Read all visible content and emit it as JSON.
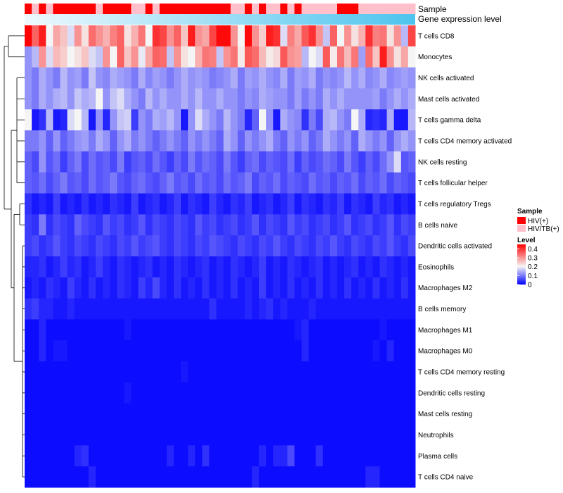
{
  "chart_data": {
    "type": "heatmap",
    "title": "",
    "annotations": {
      "sample_label": "Sample",
      "gene_label": "Gene expression level"
    },
    "rows": [
      "T cells CD8",
      "Monocytes",
      "NK cells activated",
      "Mast cells activated",
      "T cells gamma delta",
      "T cells CD4 memory activated",
      "NK cells resting",
      "T cells follicular helper",
      "T cells regulatory  Tregs",
      "B cells naive",
      "Dendritic cells activated",
      "Eosinophils",
      "Macrophages M2",
      "B cells memory",
      "Macrophages M1",
      "Macrophages M0",
      "T cells CD4 memory resting",
      "Dendritic cells resting",
      "Mast cells resting",
      "Neutrophils",
      "Plasma cells",
      "T cells CD4 naive"
    ],
    "sample_groups": [
      1,
      0,
      1,
      0,
      1,
      1,
      1,
      1,
      1,
      1,
      0,
      1,
      1,
      1,
      1,
      0,
      0,
      1,
      0,
      1,
      1,
      1,
      1,
      1,
      1,
      1,
      1,
      1,
      1,
      0,
      0,
      1,
      0,
      1,
      0,
      0,
      1,
      0,
      1,
      0,
      0,
      0,
      0,
      0,
      1,
      1,
      1,
      0,
      0,
      0,
      0,
      0,
      0,
      0,
      0
    ],
    "values": [
      [
        0.45,
        0.35,
        0.42,
        0.2,
        0.28,
        0.25,
        0.18,
        0.3,
        0.22,
        0.34,
        0.3,
        0.27,
        0.32,
        0.35,
        0.22,
        0.27,
        0.33,
        0.2,
        0.4,
        0.38,
        0.3,
        0.35,
        0.25,
        0.42,
        0.3,
        0.28,
        0.38,
        0.44,
        0.44,
        0.3,
        0.2,
        0.44,
        0.3,
        0.24,
        0.42,
        0.4,
        0.18,
        0.32,
        0.28,
        0.36,
        0.4,
        0.3,
        0.16,
        0.35,
        0.2,
        0.3,
        0.22,
        0.27,
        0.4,
        0.32,
        0.33,
        0.22,
        0.3,
        0.15,
        0.38
      ],
      [
        0.12,
        0.15,
        0.3,
        0.18,
        0.26,
        0.24,
        0.2,
        0.22,
        0.25,
        0.18,
        0.16,
        0.3,
        0.2,
        0.35,
        0.25,
        0.3,
        0.19,
        0.28,
        0.35,
        0.34,
        0.16,
        0.3,
        0.22,
        0.2,
        0.27,
        0.33,
        0.32,
        0.16,
        0.3,
        0.33,
        0.21,
        0.36,
        0.34,
        0.26,
        0.21,
        0.23,
        0.36,
        0.3,
        0.29,
        0.15,
        0.2,
        0.18,
        0.36,
        0.21,
        0.33,
        0.26,
        0.33,
        0.13,
        0.34,
        0.25,
        0.42,
        0.3,
        0.22,
        0.28,
        0.2
      ],
      [
        0.12,
        0.1,
        0.14,
        0.12,
        0.1,
        0.15,
        0.12,
        0.13,
        0.1,
        0.16,
        0.12,
        0.11,
        0.14,
        0.13,
        0.12,
        0.1,
        0.14,
        0.11,
        0.13,
        0.12,
        0.1,
        0.12,
        0.14,
        0.12,
        0.13,
        0.12,
        0.1,
        0.11,
        0.12,
        0.14,
        0.1,
        0.13,
        0.12,
        0.14,
        0.12,
        0.11,
        0.14,
        0.1,
        0.13,
        0.12,
        0.14,
        0.1,
        0.12,
        0.11,
        0.12,
        0.15,
        0.12,
        0.14,
        0.11,
        0.12,
        0.14,
        0.11,
        0.12,
        0.13,
        0.12
      ],
      [
        0.12,
        0.1,
        0.14,
        0.12,
        0.14,
        0.15,
        0.12,
        0.16,
        0.14,
        0.15,
        0.2,
        0.12,
        0.16,
        0.18,
        0.14,
        0.12,
        0.1,
        0.15,
        0.12,
        0.14,
        0.12,
        0.12,
        0.14,
        0.12,
        0.15,
        0.12,
        0.12,
        0.14,
        0.12,
        0.12,
        0.1,
        0.12,
        0.11,
        0.14,
        0.13,
        0.12,
        0.12,
        0.1,
        0.13,
        0.1,
        0.12,
        0.1,
        0.14,
        0.12,
        0.14,
        0.12,
        0.12,
        0.12,
        0.12,
        0.13,
        0.1,
        0.12,
        0.14,
        0.12,
        0.14
      ],
      [
        0.2,
        0.02,
        0.04,
        0.15,
        0.02,
        0.03,
        0.18,
        0.2,
        0.15,
        0.02,
        0.12,
        0.03,
        0.12,
        0.16,
        0.17,
        0.05,
        0.12,
        0.1,
        0.14,
        0.13,
        0.15,
        0.12,
        0.02,
        0.12,
        0.18,
        0.14,
        0.12,
        0.1,
        0.15,
        0.12,
        0.1,
        0.03,
        0.08,
        0.2,
        0.12,
        0.02,
        0.14,
        0.12,
        0.11,
        0.04,
        0.1,
        0.06,
        0.14,
        0.15,
        0.12,
        0.1,
        0.2,
        0.14,
        0.03,
        0.04,
        0.03,
        0.14,
        0.02,
        0.02,
        0.15
      ],
      [
        0.1,
        0.1,
        0.12,
        0.08,
        0.12,
        0.08,
        0.1,
        0.12,
        0.13,
        0.1,
        0.14,
        0.12,
        0.08,
        0.12,
        0.14,
        0.1,
        0.12,
        0.1,
        0.08,
        0.1,
        0.12,
        0.1,
        0.08,
        0.12,
        0.1,
        0.12,
        0.1,
        0.08,
        0.14,
        0.12,
        0.08,
        0.12,
        0.1,
        0.12,
        0.14,
        0.1,
        0.08,
        0.12,
        0.1,
        0.12,
        0.08,
        0.1,
        0.14,
        0.12,
        0.1,
        0.12,
        0.08,
        0.14,
        0.12,
        0.1,
        0.12,
        0.08,
        0.12,
        0.14,
        0.12
      ],
      [
        0.08,
        0.06,
        0.12,
        0.07,
        0.09,
        0.05,
        0.08,
        0.1,
        0.06,
        0.09,
        0.07,
        0.08,
        0.06,
        0.1,
        0.05,
        0.07,
        0.08,
        0.06,
        0.09,
        0.07,
        0.05,
        0.08,
        0.06,
        0.1,
        0.07,
        0.09,
        0.08,
        0.06,
        0.1,
        0.07,
        0.05,
        0.08,
        0.09,
        0.06,
        0.08,
        0.07,
        0.06,
        0.09,
        0.05,
        0.08,
        0.06,
        0.07,
        0.09,
        0.08,
        0.06,
        0.1,
        0.07,
        0.05,
        0.08,
        0.06,
        0.09,
        0.12,
        0.18,
        0.07,
        0.08
      ],
      [
        0.08,
        0.07,
        0.09,
        0.06,
        0.08,
        0.1,
        0.07,
        0.08,
        0.06,
        0.09,
        0.07,
        0.08,
        0.1,
        0.07,
        0.06,
        0.08,
        0.09,
        0.07,
        0.06,
        0.08,
        0.1,
        0.07,
        0.08,
        0.06,
        0.09,
        0.07,
        0.08,
        0.06,
        0.09,
        0.07,
        0.08,
        0.1,
        0.06,
        0.08,
        0.07,
        0.09,
        0.06,
        0.08,
        0.07,
        0.06,
        0.09,
        0.07,
        0.08,
        0.06,
        0.08,
        0.07,
        0.09,
        0.06,
        0.08,
        0.07,
        0.09,
        0.06,
        0.08,
        0.07,
        0.06
      ],
      [
        0.04,
        0.02,
        0.03,
        0.02,
        0.05,
        0.02,
        0.03,
        0.02,
        0.04,
        0.02,
        0.03,
        0.02,
        0.04,
        0.03,
        0.02,
        0.05,
        0.02,
        0.03,
        0.04,
        0.02,
        0.03,
        0.05,
        0.02,
        0.04,
        0.03,
        0.02,
        0.05,
        0.03,
        0.02,
        0.04,
        0.03,
        0.05,
        0.02,
        0.03,
        0.04,
        0.02,
        0.03,
        0.05,
        0.02,
        0.04,
        0.03,
        0.02,
        0.04,
        0.03,
        0.05,
        0.02,
        0.04,
        0.03,
        0.02,
        0.05,
        0.03,
        0.04,
        0.02,
        0.03,
        0.02
      ],
      [
        0.05,
        0.04,
        0.1,
        0.04,
        0.06,
        0.05,
        0.04,
        0.08,
        0.06,
        0.05,
        0.04,
        0.07,
        0.05,
        0.06,
        0.04,
        0.05,
        0.07,
        0.04,
        0.06,
        0.05,
        0.04,
        0.06,
        0.05,
        0.04,
        0.07,
        0.05,
        0.06,
        0.04,
        0.05,
        0.06,
        0.04,
        0.05,
        0.07,
        0.04,
        0.06,
        0.05,
        0.04,
        0.07,
        0.05,
        0.06,
        0.04,
        0.05,
        0.06,
        0.04,
        0.05,
        0.07,
        0.04,
        0.05,
        0.06,
        0.04,
        0.05,
        0.07,
        0.04,
        0.06,
        0.05
      ],
      [
        0.05,
        0.06,
        0.04,
        0.05,
        0.07,
        0.05,
        0.04,
        0.06,
        0.05,
        0.04,
        0.06,
        0.05,
        0.04,
        0.06,
        0.05,
        0.07,
        0.05,
        0.06,
        0.07,
        0.05,
        0.04,
        0.06,
        0.05,
        0.04,
        0.06,
        0.05,
        0.07,
        0.06,
        0.05,
        0.04,
        0.06,
        0.05,
        0.04,
        0.06,
        0.05,
        0.07,
        0.05,
        0.04,
        0.06,
        0.05,
        0.04,
        0.06,
        0.05,
        0.07,
        0.05,
        0.04,
        0.06,
        0.05,
        0.04,
        0.06,
        0.05,
        0.07,
        0.05,
        0.04,
        0.06
      ],
      [
        0.03,
        0.03,
        0.04,
        0.02,
        0.03,
        0.05,
        0.03,
        0.04,
        0.02,
        0.03,
        0.05,
        0.03,
        0.02,
        0.04,
        0.03,
        0.02,
        0.03,
        0.04,
        0.02,
        0.03,
        0.02,
        0.04,
        0.03,
        0.02,
        0.03,
        0.04,
        0.02,
        0.03,
        0.02,
        0.04,
        0.03,
        0.02,
        0.03,
        0.05,
        0.02,
        0.03,
        0.02,
        0.04,
        0.03,
        0.02,
        0.03,
        0.04,
        0.02,
        0.03,
        0.02,
        0.03,
        0.04,
        0.02,
        0.03,
        0.02,
        0.04,
        0.03,
        0.02,
        0.03,
        0.02
      ],
      [
        0.02,
        0.03,
        0.02,
        0.04,
        0.03,
        0.02,
        0.05,
        0.03,
        0.02,
        0.04,
        0.02,
        0.03,
        0.02,
        0.04,
        0.03,
        0.02,
        0.05,
        0.03,
        0.06,
        0.03,
        0.02,
        0.04,
        0.02,
        0.03,
        0.02,
        0.04,
        0.02,
        0.03,
        0.02,
        0.04,
        0.02,
        0.03,
        0.02,
        0.05,
        0.02,
        0.03,
        0.02,
        0.04,
        0.02,
        0.03,
        0.02,
        0.04,
        0.02,
        0.03,
        0.02,
        0.04,
        0.02,
        0.03,
        0.02,
        0.04,
        0.02,
        0.03,
        0.02,
        0.04,
        0.02
      ],
      [
        0.04,
        0.05,
        0.03,
        0.03,
        0.02,
        0.02,
        0.03,
        0.02,
        0.02,
        0.02,
        0.02,
        0.02,
        0.02,
        0.02,
        0.02,
        0.02,
        0.02,
        0.02,
        0.02,
        0.02,
        0.02,
        0.02,
        0.02,
        0.02,
        0.02,
        0.02,
        0.04,
        0.02,
        0.02,
        0.02,
        0.02,
        0.03,
        0.02,
        0.03,
        0.04,
        0.02,
        0.03,
        0.02,
        0.02,
        0.02,
        0.03,
        0.02,
        0.02,
        0.02,
        0.02,
        0.02,
        0.02,
        0.02,
        0.02,
        0.02,
        0.02,
        0.02,
        0.02,
        0.02,
        0.02
      ],
      [
        0.01,
        0.01,
        0.03,
        0.01,
        0.01,
        0.01,
        0.01,
        0.01,
        0.01,
        0.01,
        0.01,
        0.01,
        0.01,
        0.01,
        0.02,
        0.01,
        0.01,
        0.01,
        0.01,
        0.01,
        0.01,
        0.01,
        0.01,
        0.01,
        0.01,
        0.01,
        0.01,
        0.01,
        0.01,
        0.01,
        0.01,
        0.01,
        0.01,
        0.01,
        0.01,
        0.01,
        0.01,
        0.01,
        0.02,
        0.03,
        0.01,
        0.01,
        0.01,
        0.01,
        0.01,
        0.01,
        0.01,
        0.01,
        0.01,
        0.01,
        0.02,
        0.01,
        0.01,
        0.01,
        0.01
      ],
      [
        0.01,
        0.01,
        0.03,
        0.01,
        0.02,
        0.02,
        0.01,
        0.01,
        0.01,
        0.01,
        0.01,
        0.01,
        0.01,
        0.01,
        0.01,
        0.01,
        0.01,
        0.01,
        0.01,
        0.01,
        0.01,
        0.01,
        0.01,
        0.01,
        0.01,
        0.01,
        0.01,
        0.01,
        0.01,
        0.01,
        0.01,
        0.01,
        0.01,
        0.01,
        0.01,
        0.01,
        0.01,
        0.01,
        0.01,
        0.03,
        0.01,
        0.01,
        0.01,
        0.01,
        0.01,
        0.01,
        0.01,
        0.01,
        0.01,
        0.02,
        0.01,
        0.03,
        0.01,
        0.01,
        0.01
      ],
      [
        0.01,
        0.01,
        0.01,
        0.01,
        0.01,
        0.01,
        0.01,
        0.01,
        0.01,
        0.01,
        0.01,
        0.01,
        0.01,
        0.01,
        0.01,
        0.01,
        0.01,
        0.01,
        0.01,
        0.01,
        0.01,
        0.01,
        0.02,
        0.01,
        0.01,
        0.01,
        0.01,
        0.01,
        0.01,
        0.01,
        0.01,
        0.01,
        0.01,
        0.01,
        0.01,
        0.01,
        0.01,
        0.01,
        0.01,
        0.01,
        0.01,
        0.01,
        0.01,
        0.01,
        0.01,
        0.01,
        0.01,
        0.01,
        0.01,
        0.01,
        0.01,
        0.01,
        0.01,
        0.01,
        0.01
      ],
      [
        0.01,
        0.01,
        0.01,
        0.01,
        0.01,
        0.01,
        0.01,
        0.01,
        0.01,
        0.01,
        0.01,
        0.01,
        0.01,
        0.01,
        0.02,
        0.01,
        0.01,
        0.01,
        0.01,
        0.01,
        0.01,
        0.01,
        0.01,
        0.01,
        0.01,
        0.01,
        0.01,
        0.01,
        0.01,
        0.01,
        0.01,
        0.01,
        0.01,
        0.01,
        0.01,
        0.01,
        0.01,
        0.01,
        0.01,
        0.01,
        0.01,
        0.01,
        0.01,
        0.01,
        0.01,
        0.01,
        0.01,
        0.01,
        0.01,
        0.01,
        0.01,
        0.01,
        0.01,
        0.01,
        0.01
      ],
      [
        0.01,
        0.01,
        0.01,
        0.01,
        0.01,
        0.01,
        0.01,
        0.01,
        0.01,
        0.01,
        0.01,
        0.01,
        0.01,
        0.01,
        0.01,
        0.01,
        0.01,
        0.01,
        0.01,
        0.01,
        0.01,
        0.01,
        0.01,
        0.01,
        0.01,
        0.01,
        0.01,
        0.01,
        0.01,
        0.01,
        0.01,
        0.01,
        0.01,
        0.01,
        0.01,
        0.01,
        0.01,
        0.01,
        0.01,
        0.01,
        0.01,
        0.01,
        0.01,
        0.01,
        0.01,
        0.01,
        0.01,
        0.01,
        0.01,
        0.01,
        0.01,
        0.01,
        0.01,
        0.01,
        0.01
      ],
      [
        0.01,
        0.01,
        0.01,
        0.01,
        0.01,
        0.01,
        0.01,
        0.01,
        0.01,
        0.01,
        0.01,
        0.01,
        0.01,
        0.01,
        0.01,
        0.01,
        0.01,
        0.01,
        0.01,
        0.01,
        0.01,
        0.01,
        0.01,
        0.01,
        0.01,
        0.01,
        0.01,
        0.01,
        0.01,
        0.01,
        0.01,
        0.01,
        0.01,
        0.01,
        0.01,
        0.01,
        0.01,
        0.01,
        0.01,
        0.01,
        0.01,
        0.01,
        0.01,
        0.01,
        0.01,
        0.01,
        0.01,
        0.01,
        0.01,
        0.01,
        0.01,
        0.01,
        0.01,
        0.01,
        0.01
      ],
      [
        0.01,
        0.01,
        0.01,
        0.01,
        0.01,
        0.01,
        0.01,
        0.03,
        0.04,
        0.01,
        0.01,
        0.01,
        0.01,
        0.01,
        0.01,
        0.01,
        0.01,
        0.01,
        0.01,
        0.01,
        0.03,
        0.01,
        0.01,
        0.03,
        0.01,
        0.04,
        0.01,
        0.01,
        0.01,
        0.01,
        0.01,
        0.01,
        0.01,
        0.03,
        0.01,
        0.03,
        0.03,
        0.06,
        0.01,
        0.01,
        0.01,
        0.04,
        0.01,
        0.01,
        0.01,
        0.01,
        0.01,
        0.01,
        0.01,
        0.01,
        0.01,
        0.01,
        0.01,
        0.01,
        0.01
      ],
      [
        0.01,
        0.01,
        0.01,
        0.01,
        0.01,
        0.01,
        0.01,
        0.01,
        0.01,
        0.03,
        0.01,
        0.01,
        0.01,
        0.01,
        0.01,
        0.01,
        0.01,
        0.01,
        0.01,
        0.01,
        0.01,
        0.01,
        0.01,
        0.01,
        0.01,
        0.01,
        0.01,
        0.01,
        0.01,
        0.01,
        0.01,
        0.01,
        0.03,
        0.01,
        0.01,
        0.01,
        0.01,
        0.01,
        0.01,
        0.01,
        0.01,
        0.01,
        0.01,
        0.01,
        0.01,
        0.01,
        0.01,
        0.01,
        0.03,
        0.03,
        0.01,
        0.01,
        0.01,
        0.01,
        0.01
      ]
    ],
    "legend": {
      "sample_title": "Sample",
      "sample_entries": [
        {
          "label": "HIV(+)",
          "color": "#ff0000"
        },
        {
          "label": "HIV/TB(+)",
          "color": "#ffc0cb"
        }
      ],
      "level_title": "Level",
      "level_ticks": [
        "0.4",
        "0.3",
        "0.2",
        "0.1",
        "0"
      ],
      "level_range": [
        0,
        0.45
      ]
    },
    "colors": {
      "low": "#0000ff",
      "mid": "#f5f5f5",
      "high": "#ff0000",
      "gene_start": "#eef9fd",
      "gene_end": "#4ec4ee"
    }
  }
}
